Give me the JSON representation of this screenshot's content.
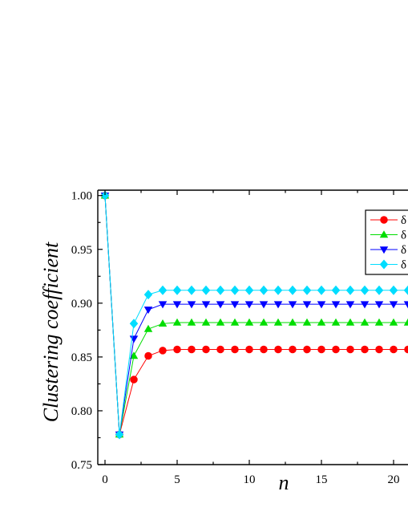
{
  "chart_data": {
    "type": "line",
    "title": "",
    "xlabel": "n",
    "ylabel": "Clustering coefficient",
    "xlim": [
      -0.5,
      21
    ],
    "ylim": [
      0.75,
      1.005
    ],
    "xticks": [
      0,
      5,
      10,
      15,
      20
    ],
    "yticks": [
      0.75,
      0.8,
      0.85,
      0.9,
      0.95,
      1.0
    ],
    "ytick_labels": [
      "0.75",
      "0.80",
      "0.85",
      "0.90",
      "0.95",
      "1.00"
    ],
    "xtick_labels": [
      "0",
      "5",
      "10",
      "15",
      "20"
    ],
    "grid": false,
    "legend_position": "top-right",
    "x": [
      0,
      1,
      2,
      3,
      4,
      5,
      6,
      7,
      8,
      9,
      10,
      11,
      12,
      13,
      14,
      15,
      16,
      17,
      18,
      19,
      20,
      21
    ],
    "series": [
      {
        "name": "δ",
        "color": "#ff0000",
        "marker": "circle",
        "values": [
          1.0,
          0.778,
          0.829,
          0.851,
          0.856,
          0.857,
          0.857,
          0.857,
          0.857,
          0.857,
          0.857,
          0.857,
          0.857,
          0.857,
          0.857,
          0.857,
          0.857,
          0.857,
          0.857,
          0.857,
          0.857,
          0.857
        ]
      },
      {
        "name": "δ",
        "color": "#00dd00",
        "marker": "triangle-up",
        "values": [
          1.0,
          0.778,
          0.851,
          0.876,
          0.881,
          0.882,
          0.882,
          0.882,
          0.882,
          0.882,
          0.882,
          0.882,
          0.882,
          0.882,
          0.882,
          0.882,
          0.882,
          0.882,
          0.882,
          0.882,
          0.882,
          0.882
        ]
      },
      {
        "name": "δ",
        "color": "#0000ff",
        "marker": "triangle-down",
        "values": [
          1.0,
          0.778,
          0.867,
          0.894,
          0.899,
          0.899,
          0.899,
          0.899,
          0.899,
          0.899,
          0.899,
          0.899,
          0.899,
          0.899,
          0.899,
          0.899,
          0.899,
          0.899,
          0.899,
          0.899,
          0.899,
          0.899
        ]
      },
      {
        "name": "δ",
        "color": "#00ddff",
        "marker": "diamond",
        "values": [
          1.0,
          0.778,
          0.881,
          0.908,
          0.912,
          0.912,
          0.912,
          0.912,
          0.912,
          0.912,
          0.912,
          0.912,
          0.912,
          0.912,
          0.912,
          0.912,
          0.912,
          0.912,
          0.912,
          0.912,
          0.912,
          0.912
        ]
      }
    ]
  }
}
